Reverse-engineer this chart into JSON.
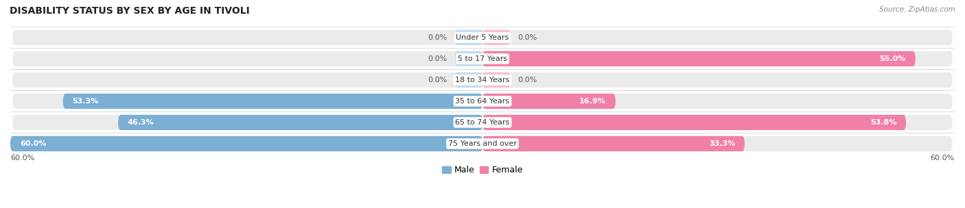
{
  "title": "DISABILITY STATUS BY SEX BY AGE IN TIVOLI",
  "source": "Source: ZipAtlas.com",
  "categories": [
    "Under 5 Years",
    "5 to 17 Years",
    "18 to 34 Years",
    "35 to 64 Years",
    "65 to 74 Years",
    "75 Years and over"
  ],
  "male_values": [
    0.0,
    0.0,
    0.0,
    53.3,
    46.3,
    60.0
  ],
  "female_values": [
    0.0,
    55.0,
    0.0,
    16.9,
    53.8,
    33.3
  ],
  "male_color": "#7bafd4",
  "female_color": "#f080a8",
  "male_color_light": "#c5ddf0",
  "female_color_light": "#f5c0d4",
  "xlim": 60.0,
  "background_color": "#ffffff",
  "bar_bg_color": "#ebebeb",
  "title_fontsize": 10,
  "legend_fontsize": 9,
  "value_fontsize": 8,
  "cat_fontsize": 8
}
